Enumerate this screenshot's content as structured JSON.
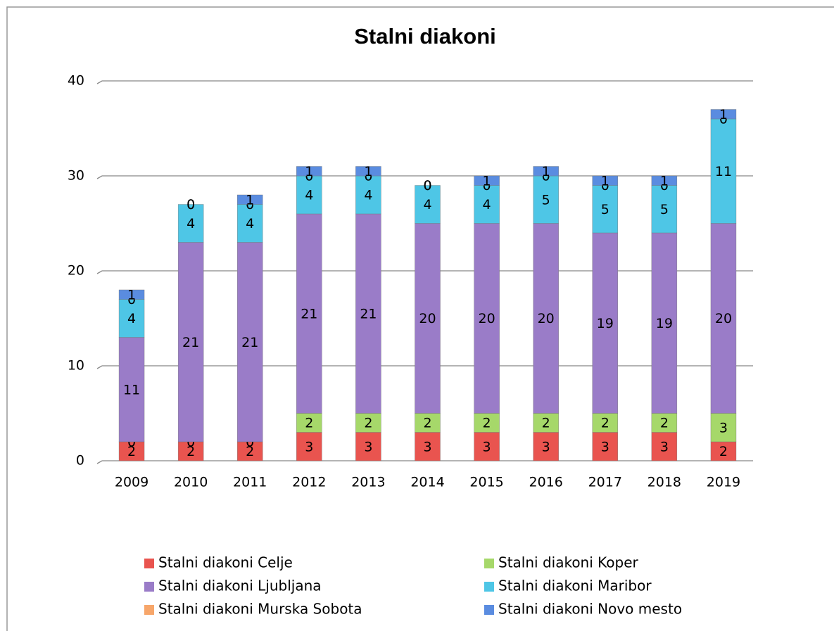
{
  "chart_data": {
    "type": "stacked_bar",
    "title": "Stalni diakoni",
    "categories": [
      "2009",
      "2010",
      "2011",
      "2012",
      "2013",
      "2014",
      "2015",
      "2016",
      "2017",
      "2018",
      "2019"
    ],
    "series": [
      {
        "name": "Stalni diakoni Celje",
        "color": "#e9544f",
        "values": [
          2,
          2,
          2,
          3,
          3,
          3,
          3,
          3,
          3,
          3,
          2
        ]
      },
      {
        "name": "Stalni diakoni Koper",
        "color": "#a6d86a",
        "values": [
          0,
          0,
          0,
          2,
          2,
          2,
          2,
          2,
          2,
          2,
          3
        ]
      },
      {
        "name": "Stalni diakoni Ljubljana",
        "color": "#9a7cc8",
        "values": [
          11,
          21,
          21,
          21,
          21,
          20,
          20,
          20,
          19,
          19,
          20
        ]
      },
      {
        "name": "Stalni diakoni Maribor",
        "color": "#4ec6e6",
        "values": [
          4,
          4,
          4,
          4,
          4,
          4,
          4,
          5,
          5,
          5,
          11
        ]
      },
      {
        "name": "Stalni diakoni Murska Sobota",
        "color": "#f7a66a",
        "values": [
          0,
          0,
          0,
          0,
          0,
          0,
          0,
          0,
          0,
          0,
          0
        ]
      },
      {
        "name": "Stalni diakoni Novo mesto",
        "color": "#5a8ce0",
        "values": [
          1,
          0,
          1,
          1,
          1,
          0,
          1,
          1,
          1,
          1,
          1
        ]
      }
    ],
    "ylim": [
      0,
      40
    ],
    "yticks": [
      0,
      10,
      20,
      30,
      40
    ],
    "grid": true,
    "legend": "bottom"
  }
}
